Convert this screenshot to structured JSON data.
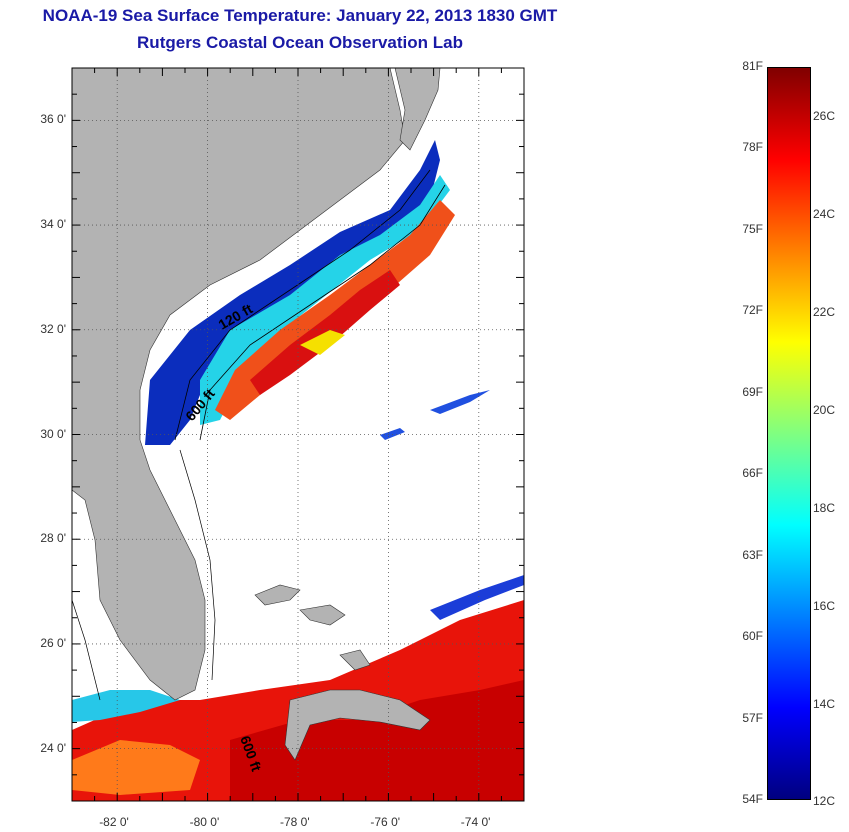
{
  "header": {
    "title": "NOAA-19 Sea Surface Temperature:  January 22, 2013 1830 GMT",
    "subtitle": "Rutgers Coastal Ocean Observation Lab"
  },
  "map": {
    "lat_ticks": [
      {
        "value": 36,
        "label": "36 0'"
      },
      {
        "value": 34,
        "label": "34 0'"
      },
      {
        "value": 32,
        "label": "32 0'"
      },
      {
        "value": 30,
        "label": "30 0'"
      },
      {
        "value": 28,
        "label": "28 0'"
      },
      {
        "value": 26,
        "label": "26 0'"
      },
      {
        "value": 24,
        "label": "24 0'"
      }
    ],
    "lon_ticks": [
      {
        "value": -82,
        "label": "-82 0'"
      },
      {
        "value": -80,
        "label": "-80 0'"
      },
      {
        "value": -78,
        "label": "-78 0'"
      },
      {
        "value": -76,
        "label": "-76 0'"
      },
      {
        "value": -74,
        "label": "-74 0'"
      }
    ],
    "lon_range": [
      -83,
      -73
    ],
    "lat_range": [
      23,
      37
    ],
    "contour_labels": [
      "120 ft",
      "600 ft",
      "600 ft"
    ],
    "land_color": "#b3b3b3"
  },
  "colorbar": {
    "fahrenheit_labels": [
      "81F",
      "78F",
      "75F",
      "72F",
      "69F",
      "66F",
      "63F",
      "60F",
      "57F",
      "54F"
    ],
    "celsius_labels": [
      "26C",
      "24C",
      "22C",
      "20C",
      "18C",
      "16C",
      "14C",
      "12C"
    ],
    "colors_top_to_bottom": [
      "#800000",
      "#ff0000",
      "#ff8000",
      "#ffff00",
      "#80ff80",
      "#00ffff",
      "#0080ff",
      "#0000ff",
      "#000080"
    ]
  }
}
